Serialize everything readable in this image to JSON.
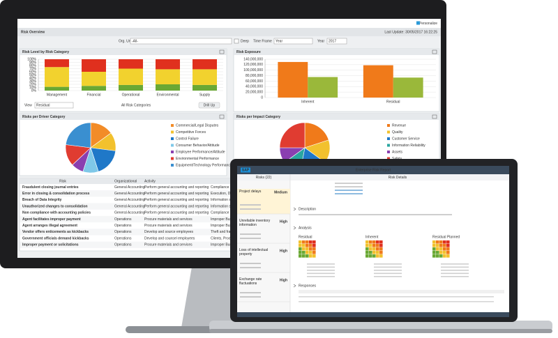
{
  "monitor": {
    "personalize": "Personalize",
    "title": "Risk Overview",
    "last_update": "Last Update: 30/05/2017 16:22:25",
    "filters": {
      "org_unit_label": "Org. Unit",
      "org_unit": "-All-",
      "deep": "Deep",
      "time_frame_label": "Time Frame",
      "time_frame": "Year",
      "year_label": "Year",
      "year": "2017"
    },
    "risk_level": {
      "type": "bar",
      "stacked": true,
      "title": "Risk Level by Risk Category",
      "categories": [
        "Management",
        "Financial",
        "Operational",
        "Environmental",
        "Supply"
      ],
      "series": [
        {
          "color": "#6aa834",
          "values": [
            12,
            15,
            18,
            20,
            18
          ]
        },
        {
          "color": "#f2d22e",
          "values": [
            63,
            45,
            52,
            48,
            50
          ]
        },
        {
          "color": "#e0301e",
          "values": [
            25,
            40,
            30,
            32,
            32
          ]
        }
      ],
      "ylim": [
        0,
        100
      ],
      "yticks": [
        {
          "value": 0,
          "label": "0%"
        },
        {
          "value": 10,
          "label": "10%"
        },
        {
          "value": 20,
          "label": "20%"
        },
        {
          "value": 30,
          "label": "30%"
        },
        {
          "value": 40,
          "label": "40%"
        },
        {
          "value": 50,
          "label": "50%"
        },
        {
          "value": 60,
          "label": "60%"
        },
        {
          "value": 70,
          "label": "70%"
        },
        {
          "value": 80,
          "label": "80%"
        },
        {
          "value": 90,
          "label": "90%"
        },
        {
          "value": 100,
          "label": "100%"
        }
      ],
      "grid": true,
      "view_label": "View",
      "view": "Residual",
      "drill_label": "All Risk Categories",
      "drill_up": "Drill Up"
    },
    "risk_exposure": {
      "type": "bar",
      "title": "Risk Exposure",
      "categories": [
        "Inherent",
        "Residual"
      ],
      "series": [
        {
          "color": "#f07a1a",
          "values": [
            130000000,
            118000000
          ]
        },
        {
          "color": "#9ab83a",
          "values": [
            75000000,
            73000000
          ]
        }
      ],
      "ylim": [
        0,
        140000000
      ],
      "yticks": [
        0,
        {
          "value": 20000000,
          "label": "20,000,000"
        },
        {
          "value": 40000000,
          "label": "40,000,000"
        },
        {
          "value": 60000000,
          "label": "60,000,000"
        },
        {
          "value": 80000000,
          "label": "80,000,000"
        },
        {
          "value": 100000000,
          "label": "100,000,000"
        },
        {
          "value": 120000000,
          "label": "120,000,000"
        },
        {
          "value": 140000000,
          "label": "140,000,000"
        }
      ],
      "grid": true
    },
    "driver_pie": {
      "type": "pie",
      "title": "Risks per Driver Category",
      "series": [
        {
          "name": "Commercial/Legal Disputes",
          "color": "#f28c28",
          "value": 15
        },
        {
          "name": "Competitive Forces",
          "color": "#f2c12e",
          "value": 12
        },
        {
          "name": "Control Failure",
          "color": "#1f78c8",
          "value": 18
        },
        {
          "name": "Consumer Behavior/Attitude",
          "color": "#7fc8e8",
          "value": 10
        },
        {
          "name": "Employee Performance/Attitude",
          "color": "#8a3fb0",
          "value": 8
        },
        {
          "name": "Environmental Performance",
          "color": "#e03c31",
          "value": 14
        },
        {
          "name": "Equipment/Technology Performance",
          "color": "#3a8fd0",
          "value": 23
        }
      ]
    },
    "impact_pie": {
      "type": "pie",
      "title": "Risks per Impact Category",
      "series": [
        {
          "name": "Revenue",
          "color": "#f07a1a",
          "value": 20
        },
        {
          "name": "Quality",
          "color": "#f2c12e",
          "value": 15
        },
        {
          "name": "Customer Service",
          "color": "#1f78c8",
          "value": 18
        },
        {
          "name": "Information Reliability",
          "color": "#2aa6a0",
          "value": 12
        },
        {
          "name": "Assets",
          "color": "#8a3fb0",
          "value": 10
        },
        {
          "name": "Safety",
          "color": "#e03c31",
          "value": 25
        }
      ]
    },
    "table": {
      "columns": [
        "Risk",
        "Organizational",
        "Activity"
      ],
      "rows": [
        [
          "Fraudulent closing journal entries",
          "General Accounting",
          "Perform general accounting and reporting",
          "Compliance"
        ],
        [
          "Error in closing & consolidation process",
          "General Accounting",
          "Perform general accounting and reporting",
          "Execution, Delivery &"
        ],
        [
          "Breach of Data Integrity",
          "General Accounting",
          "Perform general accounting and reporting",
          "Information systems"
        ],
        [
          "Unauthorized changes to consolidation",
          "General Accounting",
          "Perform general accounting and reporting",
          "Information systems"
        ],
        [
          "Non compliance with accounting policies",
          "General Accounting",
          "Perform general accounting and reporting",
          "Compliance"
        ],
        [
          "Agent facilitates improper payment",
          "Operations",
          "Procure materials and services",
          "Improper Business or M"
        ],
        [
          "Agent arranges illegal agreement",
          "Operations",
          "Procure materials and services",
          "Improper Business or M"
        ],
        [
          "Vendor offers enticements as kickbacks",
          "Operations",
          "Develop and source employees",
          "Theft and fraud"
        ],
        [
          "Government officials demand kickbacks",
          "Operations",
          "Develop and counsel employees",
          "Clients, Product and"
        ],
        [
          "Improper payment or solicitations",
          "Operations",
          "Procure materials and services",
          "Improper Business or M"
        ]
      ]
    }
  },
  "laptop": {
    "logo": "SAP",
    "app_title": "Enterprise Risk Report",
    "page_title": "Risk Details",
    "list_title": "Risks (22)",
    "risks": [
      {
        "name": "Project delays",
        "level": "Medium"
      },
      {
        "name": "Unreliable inventory information",
        "level": "High"
      },
      {
        "name": "Loss of intellectual property",
        "level": "High"
      },
      {
        "name": "Exchange rate fluctuations",
        "level": "High"
      }
    ],
    "sections": [
      "Description",
      "Analysis",
      "Responses"
    ],
    "heatmaps": [
      "Residual",
      "Inherent",
      "Residual Planned"
    ]
  }
}
